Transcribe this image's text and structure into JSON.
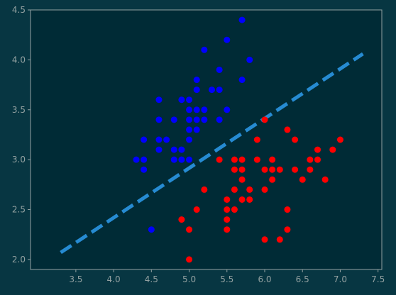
{
  "chart_data": {
    "type": "scatter",
    "title": "",
    "xlabel": "",
    "ylabel": "",
    "xlim": [
      2.9,
      7.55
    ],
    "ylim": [
      1.9,
      4.5
    ],
    "xticks": [
      3.5,
      4.0,
      4.5,
      5.0,
      5.5,
      6.0,
      6.5,
      7.0,
      7.5
    ],
    "yticks": [
      2.0,
      2.5,
      3.0,
      3.5,
      4.0,
      4.5
    ],
    "grid": false,
    "colors": {
      "figure_bg": "#073642",
      "axes_bg": "#002b36",
      "axis": "#93a1a1",
      "tick_text": "#93a1a1"
    },
    "series": [
      {
        "color": "#0000ff",
        "points": [
          [
            4.3,
            3.0
          ],
          [
            4.4,
            2.9
          ],
          [
            4.4,
            3.0
          ],
          [
            4.4,
            3.2
          ],
          [
            4.5,
            2.3
          ],
          [
            4.6,
            3.1
          ],
          [
            4.6,
            3.2
          ],
          [
            4.6,
            3.4
          ],
          [
            4.6,
            3.6
          ],
          [
            4.7,
            3.2
          ],
          [
            4.8,
            3.0
          ],
          [
            4.8,
            3.1
          ],
          [
            4.8,
            3.4
          ],
          [
            4.9,
            3.0
          ],
          [
            4.9,
            3.1
          ],
          [
            4.9,
            3.6
          ],
          [
            5.0,
            3.0
          ],
          [
            5.0,
            3.2
          ],
          [
            5.0,
            3.3
          ],
          [
            5.0,
            3.4
          ],
          [
            5.0,
            3.5
          ],
          [
            5.0,
            3.6
          ],
          [
            5.1,
            3.3
          ],
          [
            5.1,
            3.4
          ],
          [
            5.1,
            3.5
          ],
          [
            5.1,
            3.7
          ],
          [
            5.1,
            3.8
          ],
          [
            5.2,
            3.4
          ],
          [
            5.2,
            3.5
          ],
          [
            5.2,
            4.1
          ],
          [
            5.3,
            3.7
          ],
          [
            5.4,
            3.4
          ],
          [
            5.4,
            3.7
          ],
          [
            5.4,
            3.9
          ],
          [
            5.5,
            3.5
          ],
          [
            5.5,
            4.2
          ],
          [
            5.7,
            3.8
          ],
          [
            5.7,
            4.4
          ],
          [
            5.8,
            4.0
          ]
        ]
      },
      {
        "color": "#ff0000",
        "points": [
          [
            4.9,
            2.4
          ],
          [
            5.0,
            2.0
          ],
          [
            5.0,
            2.3
          ],
          [
            5.1,
            2.5
          ],
          [
            5.2,
            2.7
          ],
          [
            5.4,
            3.0
          ],
          [
            5.5,
            2.3
          ],
          [
            5.5,
            2.4
          ],
          [
            5.5,
            2.5
          ],
          [
            5.5,
            2.6
          ],
          [
            5.6,
            2.5
          ],
          [
            5.6,
            2.7
          ],
          [
            5.6,
            2.9
          ],
          [
            5.6,
            3.0
          ],
          [
            5.7,
            2.6
          ],
          [
            5.7,
            2.8
          ],
          [
            5.7,
            2.9
          ],
          [
            5.7,
            3.0
          ],
          [
            5.8,
            2.6
          ],
          [
            5.8,
            2.7
          ],
          [
            5.9,
            3.0
          ],
          [
            5.9,
            3.2
          ],
          [
            6.0,
            2.2
          ],
          [
            6.0,
            2.7
          ],
          [
            6.0,
            2.9
          ],
          [
            6.0,
            3.4
          ],
          [
            6.1,
            2.8
          ],
          [
            6.1,
            2.9
          ],
          [
            6.1,
            3.0
          ],
          [
            6.2,
            2.2
          ],
          [
            6.2,
            2.9
          ],
          [
            6.3,
            2.3
          ],
          [
            6.3,
            2.5
          ],
          [
            6.3,
            3.3
          ],
          [
            6.4,
            2.9
          ],
          [
            6.4,
            3.2
          ],
          [
            6.5,
            2.8
          ],
          [
            6.6,
            2.9
          ],
          [
            6.6,
            3.0
          ],
          [
            6.7,
            3.0
          ],
          [
            6.7,
            3.1
          ],
          [
            6.8,
            2.8
          ],
          [
            6.9,
            3.1
          ],
          [
            7.0,
            3.2
          ]
        ]
      }
    ],
    "decision_boundary": {
      "style": "dashed",
      "color": "#268bd2",
      "points": [
        [
          3.3,
          2.07
        ],
        [
          7.3,
          4.06
        ]
      ]
    }
  }
}
